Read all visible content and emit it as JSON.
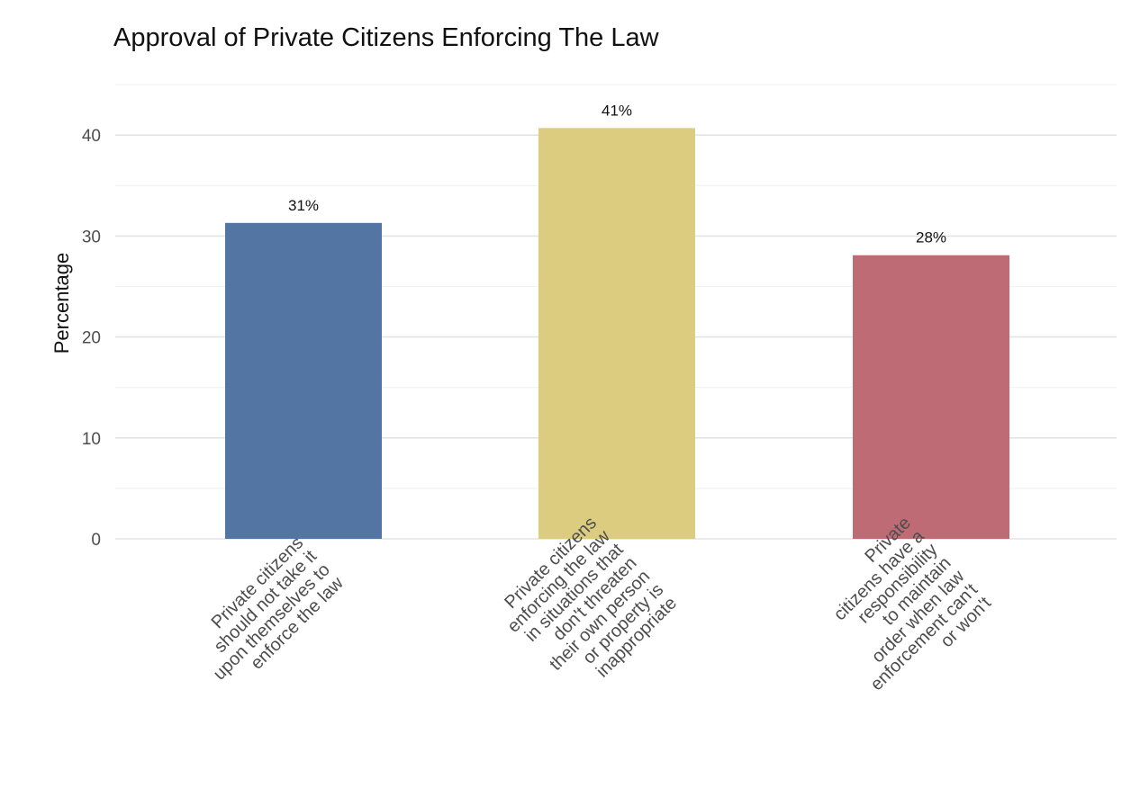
{
  "chart_data": {
    "type": "bar",
    "title": "Approval of Private Citizens Enforcing The Law",
    "xlabel": "",
    "ylabel": "Percentage",
    "ylim": [
      0,
      45
    ],
    "yticks": [
      0,
      10,
      20,
      30,
      40
    ],
    "grid": true,
    "categories": [
      [
        "Private citizens",
        "should not take it",
        "upon themselves to",
        "enforce the law"
      ],
      [
        "Private citizens",
        "enforcing the law",
        "in situations that",
        "don't threaten",
        "their own person",
        "or property is",
        "inappropriate"
      ],
      [
        "Private",
        "citizens have a",
        "responsibility",
        "to maintain",
        "order when law",
        "enforcement can't",
        "or won't"
      ]
    ],
    "values": [
      31.3,
      40.7,
      28.1
    ],
    "labels": [
      "31%",
      "41%",
      "28%"
    ],
    "colors": [
      "#5275a3",
      "#dccc80",
      "#bf6b75"
    ]
  }
}
